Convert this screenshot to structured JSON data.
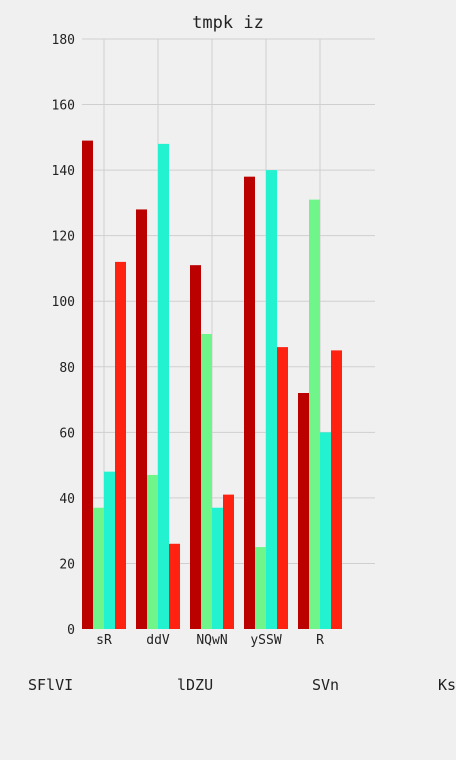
{
  "chart_data": {
    "type": "bar",
    "title": "tmpk iz",
    "xlabel": "",
    "ylabel": "",
    "categories": [
      "sR",
      "ddV",
      "NQwN",
      "ySSW",
      "R"
    ],
    "ylim": [
      0,
      180
    ],
    "yticks": [
      0,
      20,
      40,
      60,
      80,
      100,
      120,
      140,
      160,
      180
    ],
    "grid": true,
    "legend_position": "bottom",
    "series": [
      {
        "name": "SFlVI",
        "color": "#bb0000",
        "values": [
          149,
          128,
          111,
          138,
          72
        ]
      },
      {
        "name": "lDZU",
        "color": "#6ff58a",
        "values": [
          37,
          47,
          90,
          25,
          131
        ]
      },
      {
        "name": "SVn",
        "color": "#22f2d0",
        "values": [
          48,
          148,
          37,
          140,
          60
        ]
      },
      {
        "name": "Ks",
        "color": "#ff2211",
        "values": [
          112,
          26,
          41,
          86,
          85
        ]
      }
    ]
  }
}
